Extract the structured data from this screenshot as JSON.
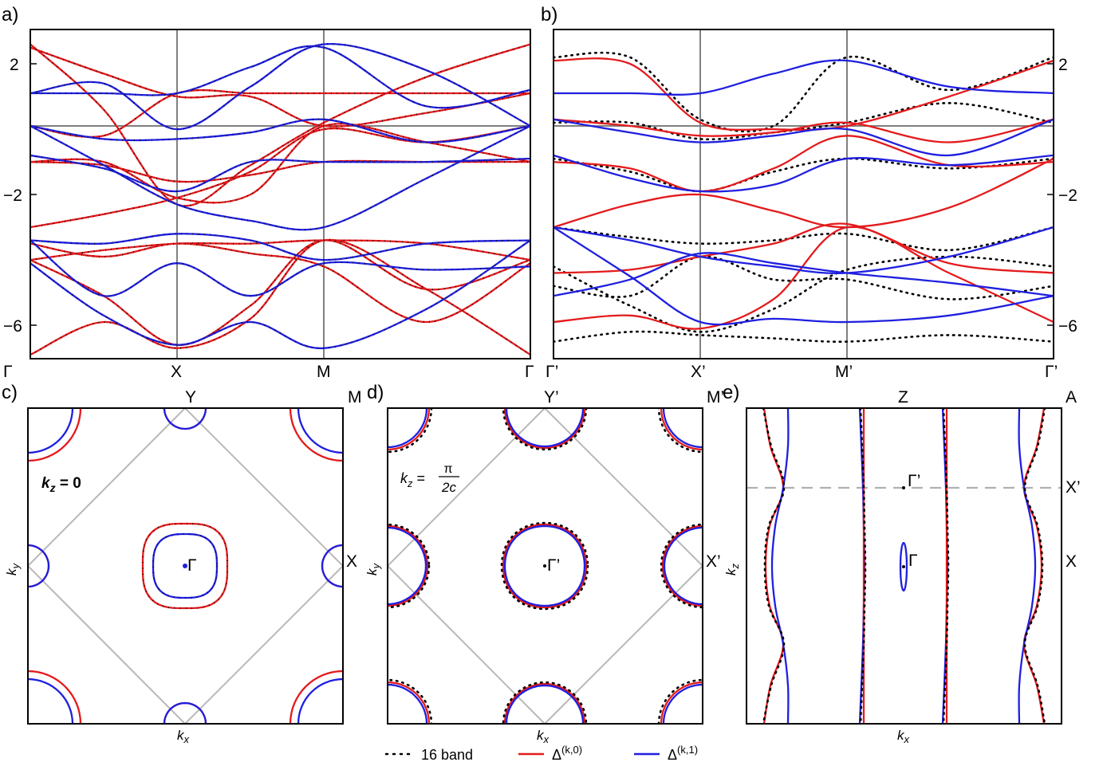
{
  "colors": {
    "red": "#e41a1c",
    "blue": "#1f1fe0",
    "black": "#000000",
    "grid": "#808080",
    "bz": "#b8b8b8",
    "dash": "#b0b0b0"
  },
  "panel_labels": {
    "a": "a)",
    "b": "b)",
    "c": "c)",
    "d": "d)",
    "e": "e)"
  },
  "ticks": {
    "a_x": [
      "Γ",
      "X",
      "M",
      "Γ"
    ],
    "b_x": [
      "Γ’",
      "X’",
      "M’",
      "Γ’"
    ],
    "a_y": [
      "2",
      "−2",
      "−6"
    ],
    "b_y": [
      "2",
      "−2",
      "−6"
    ]
  },
  "c": {
    "kz_label": "k",
    "kz_sub": "z",
    "kz_eq": " = 0",
    "gamma": "Γ",
    "Y": "Y",
    "M": "M",
    "X": "X",
    "xlabel": "k",
    "xlabel_sub": "x",
    "ylabel": "k",
    "ylabel_sub": "y"
  },
  "d": {
    "kz_label": "k",
    "kz_sub": "z",
    "kz_eq": " = ",
    "frac_num": "π",
    "frac_den": "2c",
    "gamma": "Γ’",
    "Y": "Y’",
    "M": "M’",
    "X": "X’",
    "xlabel": "k",
    "xlabel_sub": "x",
    "ylabel": "k",
    "ylabel_sub": "y"
  },
  "e": {
    "Z": "Z",
    "A": "A",
    "Xp": "X’",
    "X": "X",
    "gamma_p": "Γ’",
    "gamma": "Γ",
    "xlabel": "k",
    "xlabel_sub": "x",
    "ylabel": "k",
    "ylabel_sub": "z"
  },
  "legend": {
    "items": [
      {
        "label": "16 band",
        "style": "dotted",
        "color": "#000000"
      },
      {
        "label": "Δ",
        "sup": "(k,0)",
        "style": "solid",
        "color": "#e41a1c"
      },
      {
        "label": "Δ",
        "sup": "(k,1)",
        "style": "solid",
        "color": "#1f1fe0"
      }
    ]
  },
  "chart_data": [
    {
      "panel": "a",
      "type": "line",
      "x_ticks": [
        "Γ",
        "X",
        "M",
        "Γ"
      ],
      "y_ticks": [
        2,
        -2,
        -6
      ],
      "ylim": [
        -7.2,
        2.8
      ],
      "grid": "vertical lines at high-symmetry points, horizontal line at 0",
      "series": [
        {
          "color": "red",
          "points_at_ticks": [
            2.5,
            -2.4,
            0.1,
            2.5
          ]
        },
        {
          "color": "red",
          "points_at_ticks": [
            2.4,
            0.9,
            0.0,
            1.0
          ]
        },
        {
          "color": "red",
          "points_at_ticks": [
            0.0,
            1.0,
            0.0,
            0.0
          ]
        },
        {
          "color": "red",
          "points_at_ticks": [
            -1.1,
            -2.2,
            0.0,
            -1.1
          ]
        },
        {
          "color": "red",
          "points_at_ticks": [
            -1.1,
            -1.7,
            -1.1,
            -1.1
          ]
        },
        {
          "color": "red",
          "points_at_ticks": [
            -3.1,
            -2.2,
            -0.1,
            -1.0
          ]
        },
        {
          "color": "red",
          "points_at_ticks": [
            -4.1,
            -3.6,
            -3.5,
            -4.1
          ]
        },
        {
          "color": "red",
          "points_at_ticks": [
            -4.1,
            -3.6,
            -3.5,
            -4.0
          ]
        },
        {
          "color": "red",
          "points_at_ticks": [
            -5.1,
            -6.7,
            -3.5,
            -4.1
          ]
        },
        {
          "color": "red",
          "points_at_ticks": [
            -7.0,
            -6.8,
            -4.3,
            -7.0
          ]
        },
        {
          "color": "blue",
          "points_at_ticks": [
            1.0,
            -0.1,
            2.5,
            0.0
          ]
        },
        {
          "color": "blue",
          "points_at_ticks": [
            1.0,
            1.0,
            2.4,
            1.1
          ]
        },
        {
          "color": "blue",
          "points_at_ticks": [
            0.0,
            -0.4,
            0.2,
            0.0
          ]
        },
        {
          "color": "blue",
          "points_at_ticks": [
            -0.9,
            -2.0,
            -1.1,
            -1.0
          ]
        },
        {
          "color": "blue",
          "points_at_ticks": [
            0.0,
            -2.4,
            -3.1,
            0.0
          ]
        },
        {
          "color": "blue",
          "points_at_ticks": [
            -3.5,
            -3.3,
            -4.1,
            -3.5
          ]
        },
        {
          "color": "blue",
          "points_at_ticks": [
            -3.5,
            -4.2,
            -4.2,
            -4.3
          ]
        },
        {
          "color": "blue",
          "points_at_ticks": [
            -4.2,
            -6.7,
            -6.8,
            -3.5
          ]
        }
      ]
    },
    {
      "panel": "b",
      "type": "line",
      "x_ticks": [
        "Γ’",
        "X’",
        "M’",
        "Γ’"
      ],
      "y_ticks": [
        2,
        -2,
        -6
      ],
      "ylim": [
        -7.2,
        2.8
      ],
      "series_styles": [
        "16 band (dotted black)",
        "Δ(k,0) (red)",
        "Δ(k,1) (blue)"
      ],
      "series": [
        {
          "color": "red",
          "points_at_ticks": [
            2.0,
            0.0,
            0.0,
            2.0
          ]
        },
        {
          "color": "red",
          "points_at_ticks": [
            0.2,
            -0.3,
            0.1,
            0.2
          ]
        },
        {
          "color": "red",
          "points_at_ticks": [
            -1.1,
            -2.0,
            -0.3,
            -1.1
          ]
        },
        {
          "color": "red",
          "points_at_ticks": [
            -3.1,
            -2.1,
            -3.1,
            -1.0
          ]
        },
        {
          "color": "red",
          "points_at_ticks": [
            -4.5,
            -4.0,
            -3.0,
            -4.5
          ]
        },
        {
          "color": "red",
          "points_at_ticks": [
            -6.0,
            -6.2,
            -3.1,
            -6.0
          ]
        },
        {
          "color": "blue",
          "points_at_ticks": [
            1.0,
            1.0,
            2.0,
            1.0
          ]
        },
        {
          "color": "blue",
          "points_at_ticks": [
            0.1,
            -0.5,
            -0.1,
            0.2
          ]
        },
        {
          "color": "blue",
          "points_at_ticks": [
            -0.9,
            -2.0,
            -1.0,
            -0.9
          ]
        },
        {
          "color": "blue",
          "points_at_ticks": [
            -3.1,
            -4.0,
            -4.5,
            -3.1
          ]
        },
        {
          "color": "blue",
          "points_at_ticks": [
            -5.2,
            -6.0,
            -4.5,
            -5.2
          ]
        }
      ]
    },
    {
      "panel": "c",
      "type": "line",
      "description_labels": [
        "k_z = 0"
      ],
      "series_colors": [
        "red",
        "blue"
      ]
    },
    {
      "panel": "d",
      "type": "line",
      "description_labels": [
        "k_z = π/2c"
      ],
      "series_colors": [
        "black dotted",
        "red",
        "blue"
      ]
    },
    {
      "panel": "e",
      "type": "line",
      "series_colors": [
        "black dotted",
        "red",
        "blue"
      ]
    }
  ]
}
